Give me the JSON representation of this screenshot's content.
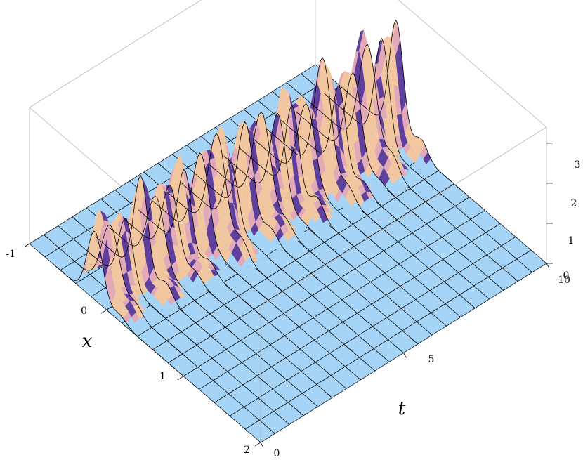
{
  "chart_data": {
    "type": "surface3d",
    "title": "",
    "xlabel": "x",
    "ylabel": "t",
    "zlabel": "",
    "x_range": [
      -1,
      2
    ],
    "t_range": [
      0,
      10
    ],
    "z_range": [
      0,
      3.4
    ],
    "x_ticks": [
      "-1",
      "0",
      "1",
      "2"
    ],
    "x_tick_values": [
      -1,
      0,
      1,
      2
    ],
    "t_ticks": [
      "0",
      "5",
      "10"
    ],
    "t_tick_values": [
      0,
      5,
      10
    ],
    "z_ticks": [
      "0",
      "1",
      "2",
      "3"
    ],
    "z_tick_values": [
      0,
      1,
      2,
      3
    ],
    "grid": false,
    "box": true,
    "mesh": true,
    "colors": {
      "flat": "#a6d4f7",
      "ridge_light": "#f2c7a0",
      "ridge_mid": "#e2a9b8",
      "ridge_dark": "#5f3f9c",
      "mesh": "#000000"
    },
    "ridge_profile": {
      "t": [
        0,
        1,
        2,
        3,
        4,
        5,
        6,
        7,
        8,
        9,
        10
      ],
      "peak_height": [
        2.2,
        2.4,
        2.6,
        2.5,
        2.9,
        2.7,
        3.0,
        2.9,
        3.1,
        3.2,
        3.3
      ],
      "center_x": [
        -0.15,
        -0.12,
        -0.1,
        -0.1,
        -0.05,
        -0.05,
        0.0,
        0.0,
        0.05,
        0.05,
        0.05
      ]
    }
  }
}
